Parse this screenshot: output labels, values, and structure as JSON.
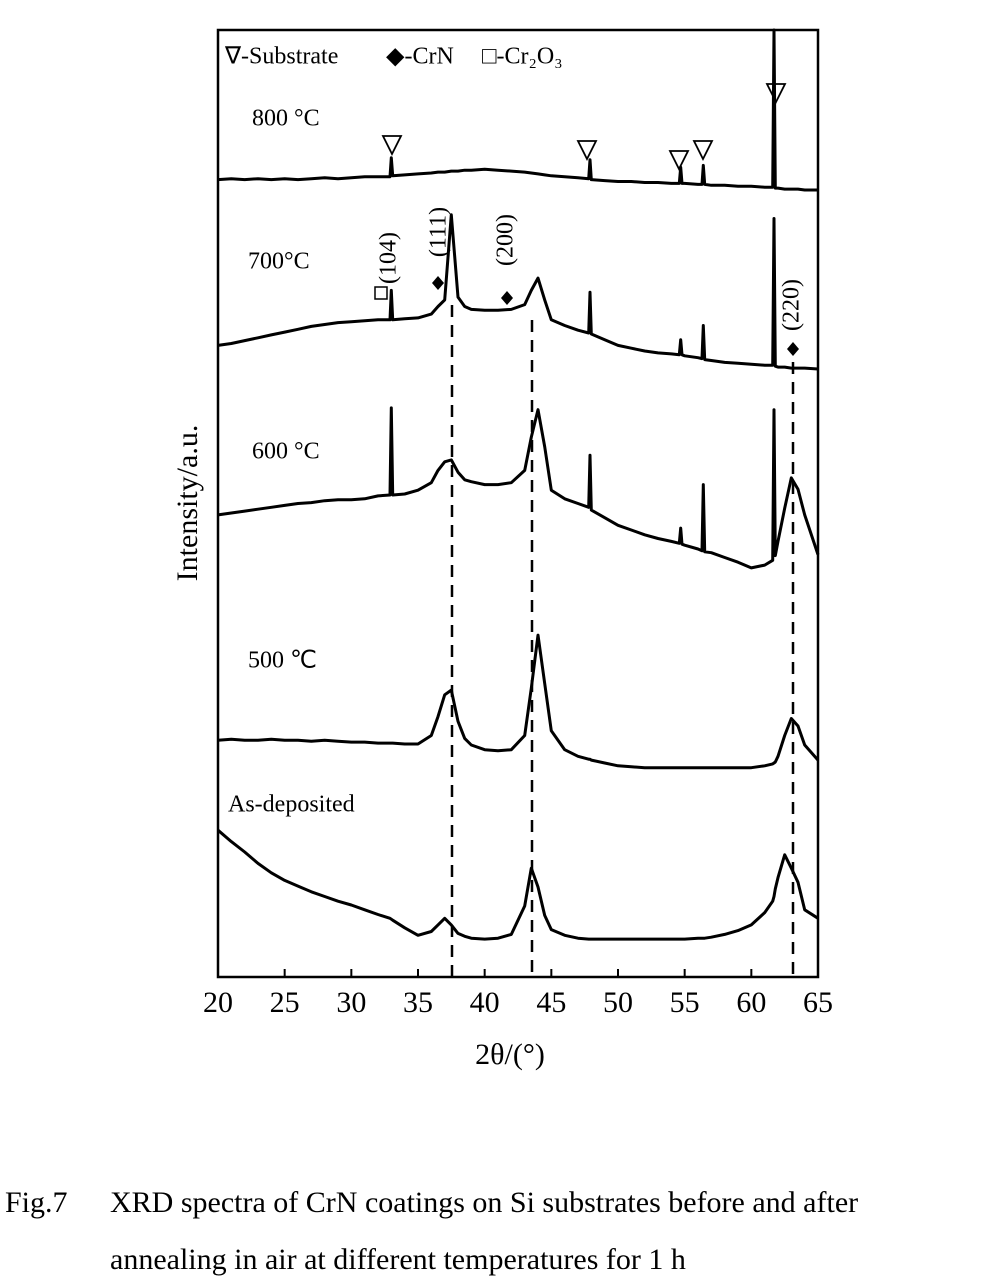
{
  "chart_data": {
    "type": "line",
    "xlabel": "2θ/(°)",
    "ylabel": "Intensity/a.u.",
    "legend_items": [
      "∇-Substrate",
      "◆-CrN",
      "□-Cr₂O₃"
    ],
    "peak_labels": [
      "(104)",
      "(111)",
      "(200)",
      "(220)"
    ],
    "xlim": [
      20,
      65
    ],
    "xticks": [
      20,
      25,
      30,
      35,
      40,
      45,
      50,
      55,
      60,
      65
    ],
    "ylim": [
      0,
      100
    ],
    "x": [
      20,
      21,
      22,
      23,
      24,
      25,
      26,
      27,
      28,
      29,
      30,
      31,
      32,
      32.9,
      33,
      33.1,
      34,
      35,
      36,
      36.5,
      37,
      37.5,
      38,
      38.5,
      39,
      40,
      41,
      42,
      43,
      43.5,
      44,
      44.5,
      45,
      46,
      47,
      47.8,
      47.9,
      48,
      49,
      50,
      51,
      52,
      53,
      54,
      54.6,
      54.7,
      54.8,
      55,
      56,
      56.3,
      56.4,
      56.5,
      57,
      58,
      59,
      60,
      61,
      61.6,
      61.7,
      61.8,
      62,
      62.5,
      63,
      63.5,
      64,
      65
    ],
    "series": [
      {
        "name": "800 °C",
        "color": "#000000",
        "values": [
          84.2,
          84.3,
          84.2,
          84.3,
          84.2,
          84.3,
          84.2,
          84.3,
          84.4,
          84.3,
          84.4,
          84.5,
          84.5,
          84.5,
          86.5,
          84.6,
          84.7,
          84.8,
          84.9,
          85,
          85,
          85.1,
          85.1,
          85.2,
          85.2,
          85.3,
          85.2,
          85.1,
          85,
          84.9,
          84.8,
          84.7,
          84.6,
          84.5,
          84.4,
          84.3,
          86.3,
          84.2,
          84.1,
          84,
          84,
          83.9,
          83.9,
          83.8,
          83.8,
          85.5,
          83.8,
          83.8,
          83.7,
          83.7,
          85.7,
          83.7,
          83.6,
          83.6,
          83.5,
          83.5,
          83.4,
          83.4,
          100,
          83.3,
          83.3,
          83.2,
          83.2,
          83.2,
          83.1,
          83.1
        ]
      },
      {
        "name": "700°C",
        "color": "#000000",
        "values": [
          66.7,
          66.9,
          67.2,
          67.5,
          67.8,
          68.1,
          68.4,
          68.7,
          68.9,
          69.1,
          69.2,
          69.3,
          69.4,
          69.4,
          72.5,
          69.4,
          69.5,
          69.6,
          70,
          70.8,
          71.5,
          80.5,
          71.8,
          70.8,
          70.5,
          70.4,
          70.4,
          70.5,
          71,
          72.5,
          73.8,
          71.5,
          69.4,
          68.8,
          68.3,
          68,
          72.3,
          67.9,
          67.3,
          66.7,
          66.4,
          66.1,
          65.9,
          65.8,
          65.7,
          67.3,
          65.7,
          65.6,
          65.4,
          65.3,
          68.8,
          65.2,
          65.1,
          64.9,
          64.8,
          64.7,
          64.6,
          64.6,
          80.1,
          64.5,
          64.4,
          64.4,
          64.3,
          64.3,
          64.3,
          64.2
        ]
      },
      {
        "name": "600  °C",
        "color": "#000000",
        "values": [
          48.8,
          49,
          49.2,
          49.4,
          49.6,
          49.8,
          50,
          50.1,
          50.3,
          50.4,
          50.4,
          50.5,
          50.8,
          50.9,
          60.1,
          50.9,
          51,
          51.4,
          52.2,
          53.5,
          54.4,
          54.6,
          53.3,
          52.5,
          52.3,
          52,
          52,
          52.2,
          53.5,
          57,
          59.9,
          56,
          51.4,
          50.5,
          50,
          49.6,
          55.1,
          49.3,
          48.5,
          47.7,
          47.2,
          46.7,
          46.3,
          46,
          45.8,
          47.4,
          45.7,
          45.6,
          45.2,
          45,
          52,
          44.9,
          44.8,
          44.3,
          43.8,
          43.2,
          43.5,
          44,
          59.9,
          44.5,
          46,
          49.5,
          52.7,
          51.5,
          48.8,
          44.6
        ]
      },
      {
        "name": "500  ℃",
        "color": "#000000",
        "values": [
          25,
          25.1,
          25,
          25,
          25.1,
          25,
          25,
          24.9,
          25,
          24.9,
          24.8,
          24.8,
          24.7,
          24.7,
          24.7,
          24.7,
          24.6,
          24.6,
          25.5,
          27.5,
          29.8,
          30.3,
          27,
          25.2,
          24.5,
          24,
          23.9,
          24,
          25.5,
          30.5,
          36.1,
          31,
          26,
          24,
          23.3,
          23,
          23,
          22.9,
          22.6,
          22.3,
          22.2,
          22.1,
          22.1,
          22.1,
          22.1,
          22.1,
          22.1,
          22.1,
          22.1,
          22.1,
          22.1,
          22.1,
          22.1,
          22.1,
          22.1,
          22.1,
          22.3,
          22.5,
          22.6,
          22.7,
          23.3,
          25.5,
          27.3,
          26.5,
          24.5,
          22.9
        ]
      },
      {
        "name": "As-deposited",
        "color": "#000000",
        "values": [
          15.5,
          14.3,
          13.2,
          12,
          11,
          10.2,
          9.6,
          9,
          8.5,
          8,
          7.6,
          7.1,
          6.6,
          6.2,
          6.1,
          6,
          5.2,
          4.4,
          4.8,
          5.5,
          6.2,
          5.5,
          4.6,
          4.3,
          4.1,
          4,
          4.1,
          4.5,
          7.5,
          11.5,
          9.5,
          6.5,
          5,
          4.4,
          4.1,
          4,
          4,
          4,
          4,
          4,
          4,
          4,
          4,
          4,
          4,
          4,
          4,
          4,
          4.1,
          4.1,
          4.1,
          4.1,
          4.2,
          4.5,
          4.9,
          5.5,
          6.8,
          8,
          8.5,
          9.3,
          10.5,
          12.9,
          11.5,
          10,
          7.1,
          6.2
        ]
      }
    ]
  },
  "caption": {
    "label": "Fig.7",
    "lines": [
      "XRD spectra of CrN coatings on Si substrates before and after",
      "annealing in air at different temperatures for 1 h"
    ]
  }
}
